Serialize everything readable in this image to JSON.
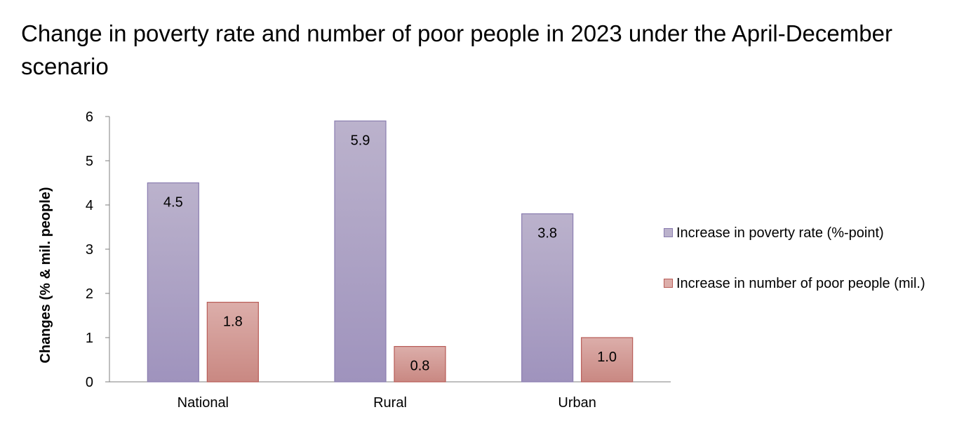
{
  "title": "Change in poverty rate and number of poor people in 2023 under the April-December scenario",
  "colors": {
    "series_1_fill_top": "#bbb2cc",
    "series_1_fill_bottom": "#9f93bd",
    "series_1_border": "#8a7db0",
    "series_2_fill_top": "#dcaeaa",
    "series_2_fill_bottom": "#c98882",
    "series_2_border": "#b85c57",
    "axis": "#7f7f7f"
  },
  "chart_data": {
    "type": "bar",
    "title": "Change in poverty rate and number of poor people in 2023 under the April-December scenario",
    "xlabel": "",
    "ylabel": "Changes (% & mil. people)",
    "categories": [
      "National",
      "Rural",
      "Urban"
    ],
    "series": [
      {
        "name": "Increase in poverty rate (%-point)",
        "values": [
          4.5,
          5.9,
          3.8
        ],
        "labels": [
          "4.5",
          "5.9",
          "3.8"
        ]
      },
      {
        "name": "Increase in number of poor people (mil.)",
        "values": [
          1.8,
          0.8,
          1.0
        ],
        "labels": [
          "1.8",
          "0.8",
          "1.0"
        ]
      }
    ],
    "ylim": [
      0,
      6
    ],
    "yticks": [
      "0",
      "1",
      "2",
      "3",
      "4",
      "5",
      "6"
    ],
    "grid": false,
    "legend_position": "right"
  }
}
